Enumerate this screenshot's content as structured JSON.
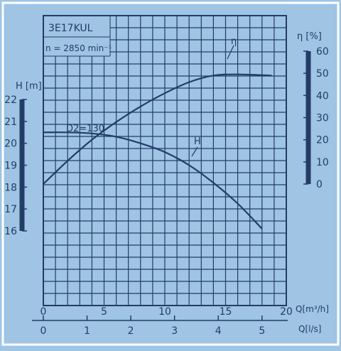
{
  "chart_data": {
    "type": "line",
    "title": "3E17KUL",
    "subtitle": "n = 2850 min⁻¹",
    "impeller_label": "D2=130",
    "x_axis_top": {
      "label": "Q[m³/h]",
      "ticks": [
        0,
        5,
        10,
        15,
        20
      ],
      "range": [
        0,
        20
      ]
    },
    "x_axis_bottom": {
      "label": "Q[l/s]",
      "ticks": [
        0,
        1,
        2,
        3,
        4,
        5
      ]
    },
    "y_axis_left": {
      "label": "H [m]",
      "ticks": [
        16,
        17,
        18,
        19,
        20,
        21,
        22
      ],
      "range": [
        16,
        22
      ]
    },
    "y_axis_right": {
      "label": "ƞ [%]",
      "ticks": [
        0,
        10,
        20,
        30,
        40,
        50,
        60
      ],
      "range": [
        0,
        60
      ]
    },
    "grid": true,
    "series": [
      {
        "name": "H",
        "axis": "left",
        "x": [
          0,
          2,
          4,
          6,
          8,
          10,
          12,
          14,
          16,
          18
        ],
        "y": [
          20.5,
          20.5,
          20.45,
          20.3,
          20.0,
          19.6,
          19.0,
          18.2,
          17.25,
          16.1
        ]
      },
      {
        "name": "ƞ",
        "axis": "right",
        "x": [
          0,
          2,
          4,
          6,
          8,
          10,
          12,
          14,
          16,
          18.8
        ],
        "y": [
          0,
          10.5,
          20,
          28,
          35,
          41,
          46,
          49,
          49.5,
          49
        ]
      }
    ]
  }
}
